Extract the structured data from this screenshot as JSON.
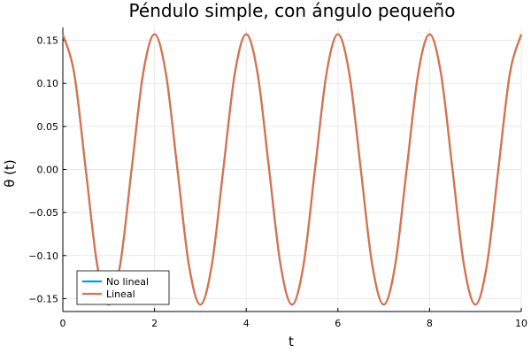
{
  "chart_data": {
    "type": "line",
    "title": "Péndulo simple, con ángulo pequeño",
    "xlabel": "t",
    "ylabel": "θ (t)",
    "xlim": [
      0,
      10
    ],
    "ylim": [
      -0.165,
      0.165
    ],
    "xticks": [
      0,
      2,
      4,
      6,
      8,
      10
    ],
    "xtick_labels": [
      "0",
      "2",
      "4",
      "6",
      "8",
      "10"
    ],
    "yticks": [
      0.15,
      0.1,
      0.05,
      0.0,
      -0.05,
      -0.1,
      -0.15
    ],
    "ytick_labels": [
      "0.15",
      "0.10",
      "0.05",
      "0.00",
      "−0.05",
      "−0.10",
      "−0.15"
    ],
    "grid": true,
    "legend_position": "bottom-left",
    "series": [
      {
        "name": "No lineal",
        "color": "#009AFA",
        "x": [
          0,
          0.25,
          0.5,
          0.75,
          1.0,
          1.25,
          1.5,
          1.75,
          2.0,
          2.25,
          2.5,
          2.75,
          3.0,
          3.25,
          3.5,
          3.75,
          4.0,
          4.25,
          4.5,
          4.75,
          5.0,
          5.25,
          5.5,
          5.75,
          6.0,
          6.25,
          6.5,
          6.75,
          7.0,
          7.25,
          7.5,
          7.75,
          8.0,
          8.25,
          8.5,
          8.75,
          9.0,
          9.25,
          9.5,
          9.75,
          10.0
        ],
        "y": [
          0.157,
          0.111,
          0.0,
          -0.111,
          -0.157,
          -0.111,
          0.0,
          0.111,
          0.157,
          0.111,
          0.0,
          -0.111,
          -0.157,
          -0.111,
          0.0,
          0.111,
          0.157,
          0.111,
          0.0,
          -0.111,
          -0.157,
          -0.111,
          0.0,
          0.111,
          0.157,
          0.111,
          0.0,
          -0.111,
          -0.157,
          -0.111,
          0.0,
          0.111,
          0.157,
          0.111,
          0.0,
          -0.111,
          -0.157,
          -0.111,
          0.0,
          0.111,
          0.157
        ]
      },
      {
        "name": "Lineal",
        "color": "#E26F46",
        "x": [
          0,
          0.25,
          0.5,
          0.75,
          1.0,
          1.25,
          1.5,
          1.75,
          2.0,
          2.25,
          2.5,
          2.75,
          3.0,
          3.25,
          3.5,
          3.75,
          4.0,
          4.25,
          4.5,
          4.75,
          5.0,
          5.25,
          5.5,
          5.75,
          6.0,
          6.25,
          6.5,
          6.75,
          7.0,
          7.25,
          7.5,
          7.75,
          8.0,
          8.25,
          8.5,
          8.75,
          9.0,
          9.25,
          9.5,
          9.75,
          10.0
        ],
        "y": [
          0.157,
          0.111,
          0.0,
          -0.111,
          -0.157,
          -0.111,
          0.0,
          0.111,
          0.157,
          0.111,
          0.0,
          -0.111,
          -0.157,
          -0.111,
          0.0,
          0.111,
          0.157,
          0.111,
          0.0,
          -0.111,
          -0.157,
          -0.111,
          0.0,
          0.111,
          0.157,
          0.111,
          0.0,
          -0.111,
          -0.157,
          -0.111,
          0.0,
          0.111,
          0.157,
          0.111,
          0.0,
          -0.111,
          -0.157,
          -0.111,
          0.0,
          0.111,
          0.157
        ]
      }
    ]
  }
}
